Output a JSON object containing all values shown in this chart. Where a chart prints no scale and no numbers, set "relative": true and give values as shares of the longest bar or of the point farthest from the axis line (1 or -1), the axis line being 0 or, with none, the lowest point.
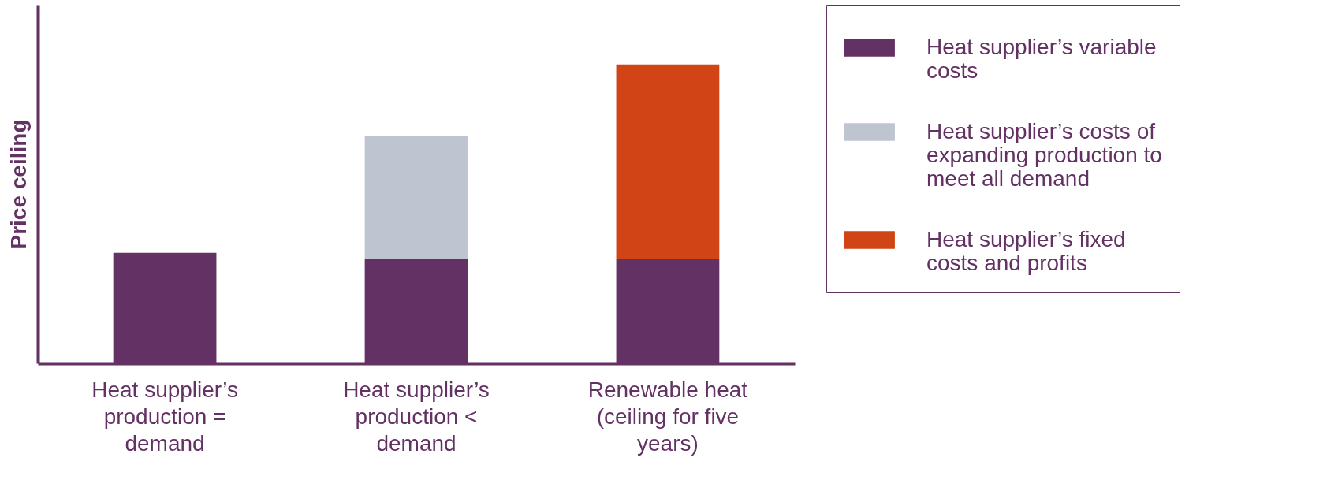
{
  "chart_data": {
    "type": "bar",
    "stacked": true,
    "relative": true,
    "ylabel": "Price ceiling",
    "legend": "right",
    "grid": false,
    "categories": [
      "Heat supplier’s production = demand",
      "Heat supplier’s production < demand",
      "Renewable heat (ceiling for five years)"
    ],
    "series": [
      {
        "name": "Heat supplier’s variable costs",
        "color": "#633163",
        "values": [
          0.37,
          0.35,
          0.35
        ]
      },
      {
        "name": "Heat supplier’s costs of expanding production to meet all demand",
        "color": "#bec5d1",
        "values": [
          null,
          0.41,
          null
        ]
      },
      {
        "name": "Heat supplier’s fixed costs and profits",
        "color": "#d04415",
        "values": [
          null,
          null,
          0.65
        ]
      }
    ]
  }
}
